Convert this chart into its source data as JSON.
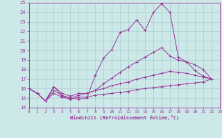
{
  "xlabel": "Windchill (Refroidissement éolien,°C)",
  "xlim": [
    0,
    23
  ],
  "ylim": [
    14,
    25
  ],
  "xticks": [
    0,
    1,
    2,
    3,
    4,
    5,
    6,
    7,
    8,
    9,
    10,
    11,
    12,
    13,
    14,
    15,
    16,
    17,
    18,
    19,
    20,
    21,
    22,
    23
  ],
  "yticks": [
    14,
    15,
    16,
    17,
    18,
    19,
    20,
    21,
    22,
    23,
    24,
    25
  ],
  "bg_color": "#cce8e8",
  "line_color": "#993399",
  "grid_color": "#aacccc",
  "curves": [
    [
      16.0,
      15.5,
      14.7,
      16.2,
      15.2,
      15.0,
      14.9,
      15.0,
      17.4,
      19.2,
      20.1,
      21.9,
      22.2,
      23.2,
      22.1,
      24.0,
      24.9,
      24.0,
      19.3,
      18.8,
      17.9,
      17.3,
      17.0
    ],
    [
      16.0,
      15.5,
      14.7,
      16.2,
      15.5,
      15.2,
      15.5,
      15.5,
      15.8,
      16.5,
      17.1,
      17.7,
      18.3,
      18.8,
      19.3,
      19.8,
      20.3,
      19.4,
      19.0,
      18.8,
      18.5,
      18.0,
      17.0
    ],
    [
      16.0,
      15.5,
      14.7,
      15.8,
      15.3,
      15.0,
      15.3,
      15.5,
      15.8,
      16.0,
      16.3,
      16.5,
      16.7,
      17.0,
      17.2,
      17.4,
      17.6,
      17.8,
      17.7,
      17.6,
      17.4,
      17.2,
      17.0
    ],
    [
      16.0,
      15.5,
      14.7,
      15.5,
      15.1,
      14.9,
      15.1,
      15.1,
      15.3,
      15.4,
      15.5,
      15.6,
      15.7,
      15.9,
      16.0,
      16.1,
      16.2,
      16.3,
      16.4,
      16.5,
      16.6,
      16.7,
      17.0
    ]
  ]
}
